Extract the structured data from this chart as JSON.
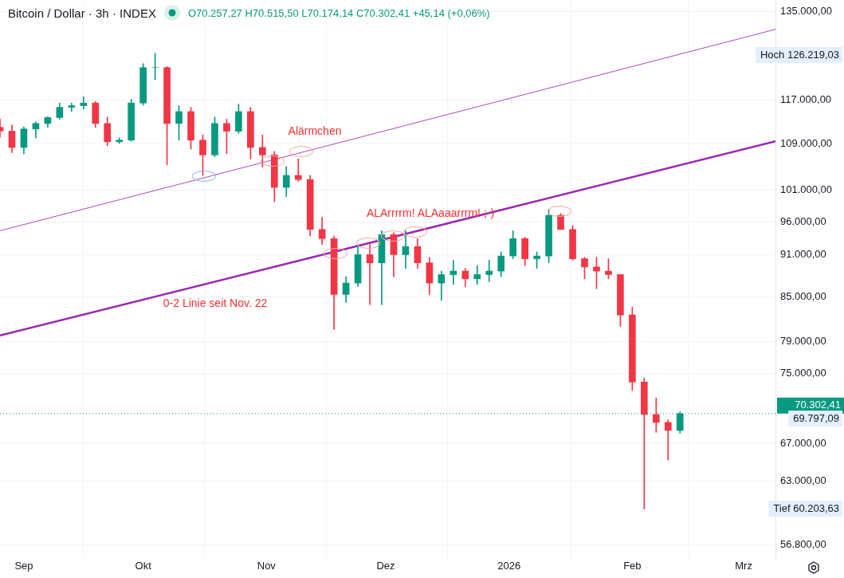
{
  "chart_data": {
    "type": "candlestick",
    "title": "Bitcoin / Dollar · 3h · INDEX",
    "subtitle": "O70.257,27 H70.515,50 L70.174,14 C70.302,41 +45,14 (+0,06%)",
    "x": [
      "2025-08-26",
      "2025-08-29",
      "2025-09-01",
      "2025-09-04",
      "2025-09-07",
      "2025-09-10",
      "2025-09-13",
      "2025-09-16",
      "2025-09-19",
      "2025-09-22",
      "2025-09-25",
      "2025-09-28",
      "2025-10-01",
      "2025-10-04",
      "2025-10-07",
      "2025-10-10",
      "2025-10-13",
      "2025-10-16",
      "2025-10-19",
      "2025-10-22",
      "2025-10-25",
      "2025-10-28",
      "2025-10-31",
      "2025-11-03",
      "2025-11-06",
      "2025-11-09",
      "2025-11-12",
      "2025-11-15",
      "2025-11-18",
      "2025-11-21",
      "2025-11-24",
      "2025-11-27",
      "2025-11-30",
      "2025-12-03",
      "2025-12-06",
      "2025-12-09",
      "2025-12-12",
      "2025-12-15",
      "2025-12-18",
      "2025-12-21",
      "2025-12-24",
      "2025-12-27",
      "2025-12-30",
      "2026-01-02",
      "2026-01-05",
      "2026-01-08",
      "2026-01-11",
      "2026-01-14",
      "2026-01-17",
      "2026-01-20",
      "2026-01-23",
      "2026-01-26",
      "2026-01-29",
      "2026-02-01",
      "2026-02-04",
      "2026-02-07",
      "2026-02-10",
      "2026-02-13"
    ],
    "ohlc": [
      [
        111900,
        113400,
        110100,
        111200
      ],
      [
        111200,
        112300,
        107400,
        108300
      ],
      [
        108300,
        112000,
        107200,
        111600
      ],
      [
        111600,
        112900,
        110000,
        112600
      ],
      [
        112600,
        113800,
        111900,
        113700
      ],
      [
        113700,
        116400,
        113400,
        115600
      ],
      [
        115600,
        116400,
        114800,
        115900
      ],
      [
        115900,
        117600,
        115300,
        116400
      ],
      [
        116400,
        116700,
        111900,
        112600
      ],
      [
        112600,
        113800,
        108600,
        109300
      ],
      [
        109300,
        110000,
        109000,
        109600
      ],
      [
        109600,
        117100,
        109400,
        116400
      ],
      [
        116400,
        124100,
        116000,
        123300
      ],
      [
        123300,
        126219.03,
        120900,
        123300
      ],
      [
        123300,
        123500,
        105300,
        112600
      ],
      [
        112600,
        115900,
        109600,
        114800
      ],
      [
        114800,
        115600,
        108000,
        109600
      ],
      [
        109600,
        110500,
        103500,
        107000
      ],
      [
        107000,
        113800,
        106700,
        112600
      ],
      [
        112600,
        113400,
        107200,
        111200
      ],
      [
        111200,
        116200,
        110800,
        114800
      ],
      [
        114800,
        115600,
        106300,
        108300
      ],
      [
        108300,
        110500,
        104900,
        107000
      ],
      [
        107000,
        107600,
        99200,
        101500
      ],
      [
        101500,
        105000,
        100000,
        103500
      ],
      [
        103500,
        106300,
        102500,
        102800
      ],
      [
        102800,
        103500,
        93800,
        94800
      ],
      [
        94800,
        96700,
        92500,
        93400
      ],
      [
        93400,
        93800,
        80600,
        85300
      ],
      [
        85300,
        87800,
        84200,
        86900
      ],
      [
        86900,
        92500,
        86400,
        91000
      ],
      [
        91000,
        92500,
        83900,
        89800
      ],
      [
        89800,
        94600,
        83900,
        94000
      ],
      [
        94000,
        94300,
        87800,
        91000
      ],
      [
        91000,
        94600,
        89000,
        92200
      ],
      [
        92200,
        93400,
        89000,
        89800
      ],
      [
        89800,
        90600,
        85300,
        86900
      ],
      [
        86900,
        88600,
        84500,
        88100
      ],
      [
        88100,
        90200,
        86700,
        88600
      ],
      [
        88600,
        89000,
        86400,
        87500
      ],
      [
        87500,
        89400,
        86700,
        88100
      ],
      [
        88100,
        90200,
        87100,
        88600
      ],
      [
        88600,
        91400,
        87800,
        90800
      ],
      [
        90800,
        94600,
        90400,
        93400
      ],
      [
        93400,
        93600,
        89400,
        90400
      ],
      [
        90400,
        91400,
        89000,
        90800
      ],
      [
        90800,
        97900,
        89800,
        97000
      ],
      [
        97000,
        97300,
        94800,
        94800
      ],
      [
        94800,
        95400,
        90200,
        90400
      ],
      [
        90400,
        90600,
        87500,
        89200
      ],
      [
        89200,
        90600,
        86100,
        88600
      ],
      [
        88600,
        90400,
        87500,
        88100
      ],
      [
        88100,
        88100,
        81000,
        82500
      ],
      [
        82500,
        83600,
        73000,
        74000
      ],
      [
        74000,
        74500,
        60203.63,
        70200
      ],
      [
        70200,
        72100,
        68200,
        69300
      ],
      [
        69300,
        69600,
        65200,
        68400
      ],
      [
        68400,
        70515.5,
        68100,
        70302.41
      ]
    ],
    "colors": [
      "#f23645",
      "#f23645",
      "#089981",
      "#089981",
      "#089981",
      "#089981",
      "#089981",
      "#089981",
      "#f23645",
      "#f23645",
      "#089981",
      "#089981",
      "#089981",
      "#089981",
      "#f23645",
      "#089981",
      "#f23645",
      "#f23645",
      "#089981",
      "#f23645",
      "#089981",
      "#f23645",
      "#f23645",
      "#f23645",
      "#089981",
      "#f23645",
      "#f23645",
      "#f23645",
      "#f23645",
      "#089981",
      "#089981",
      "#f23645",
      "#089981",
      "#f23645",
      "#089981",
      "#f23645",
      "#f23645",
      "#089981",
      "#089981",
      "#f23645",
      "#089981",
      "#089981",
      "#089981",
      "#089981",
      "#f23645",
      "#089981",
      "#089981",
      "#f23645",
      "#f23645",
      "#f23645",
      "#f23645",
      "#f23645",
      "#f23645",
      "#f23645",
      "#f23645",
      "#f23645",
      "#f23645",
      "#089981"
    ],
    "series": [
      {
        "type": "line",
        "x": [
          "2025-08-26",
          "2026-03-09"
        ],
        "values": [
          94600,
          131200
        ],
        "color": "#ab47bc"
      },
      {
        "type": "line",
        "x": [
          "2025-08-26",
          "2026-03-09"
        ],
        "values": [
          79800,
          109400
        ],
        "color": "#9c27b0"
      }
    ],
    "marker": "none",
    "log": true,
    "xlim": [
      "2025-08-26",
      "2026-03-09"
    ],
    "xticks": [
      {
        "value": "2025-09-01",
        "label": "Sep"
      },
      {
        "value": "2025-10-01",
        "label": "Okt"
      },
      {
        "value": "2025-11-01",
        "label": "Nov"
      },
      {
        "value": "2025-12-01",
        "label": "Dez"
      },
      {
        "value": "2026-01-01",
        "label": "2026"
      },
      {
        "value": "2026-02-01",
        "label": "Feb"
      },
      {
        "value": "2026-03-01",
        "label": "Mrz"
      }
    ],
    "ylim": [
      55600,
      137600
    ],
    "yticks": [
      {
        "value": 56800,
        "label": "56.800,00"
      },
      {
        "value": 63000,
        "label": "63.000,00"
      },
      {
        "value": 67000,
        "label": "67.000,00"
      },
      {
        "value": 75000,
        "label": "75.000,00"
      },
      {
        "value": 79000,
        "label": "79.000,00"
      },
      {
        "value": 85000,
        "label": "85.000,00"
      },
      {
        "value": 91000,
        "label": "91.000,00"
      },
      {
        "value": 96000,
        "label": "96.000,00"
      },
      {
        "value": 101000,
        "label": "101.000,00"
      },
      {
        "value": 109000,
        "label": "109.000,00"
      },
      {
        "value": 117000,
        "label": "117.000,00"
      },
      {
        "value": 135000,
        "label": "135.000,00"
      }
    ],
    "grid": true,
    "legend": false,
    "ref_lines": [
      {
        "axis": "y",
        "value": 70302.41,
        "label": "70.302,41",
        "color": "#089981",
        "line_style": "dotted"
      }
    ],
    "annotations": [
      "Alärmchen",
      "ALArrrrm! ALAaaarrrm! ;-)",
      "0-2 Linie seit Nov. 22",
      "Hoch 126.219,03",
      "Tief 60.203,63",
      "69.797,09"
    ]
  }
}
